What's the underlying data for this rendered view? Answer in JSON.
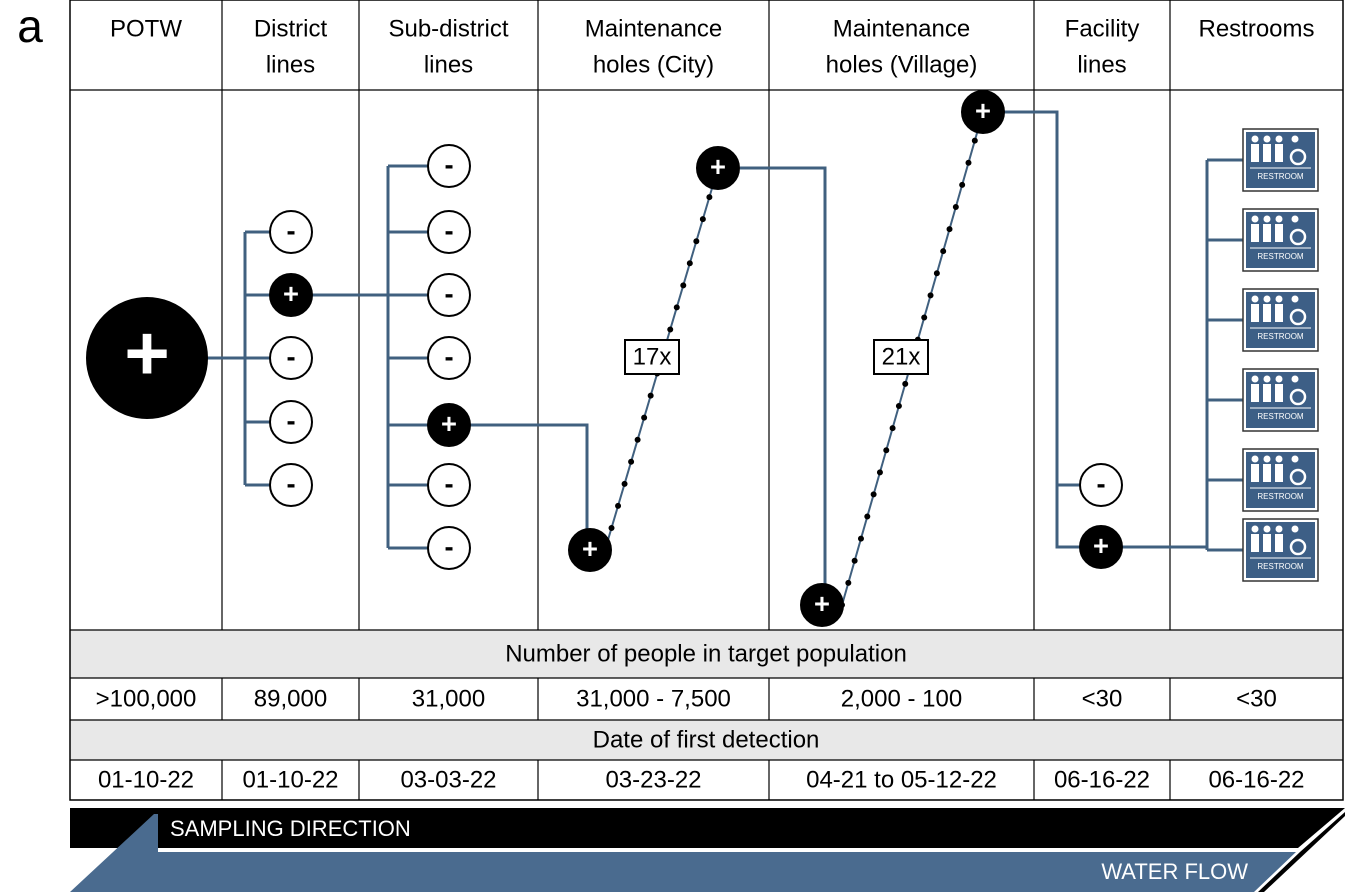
{
  "panel_label": "a",
  "columns": [
    {
      "header": [
        "POTW"
      ]
    },
    {
      "header": [
        "District",
        "lines"
      ]
    },
    {
      "header": [
        "Sub-district",
        "lines"
      ]
    },
    {
      "header": [
        "Maintenance",
        "holes (City)"
      ]
    },
    {
      "header": [
        "Maintenance",
        "holes (Village)"
      ]
    },
    {
      "header": [
        "Facility",
        "lines"
      ]
    },
    {
      "header": [
        "Restrooms"
      ]
    }
  ],
  "potw_node": "+",
  "district_nodes": [
    "-",
    "+",
    "-",
    "-",
    "-"
  ],
  "subdistrict_nodes": [
    "-",
    "-",
    "-",
    "-",
    "+",
    "-",
    "-"
  ],
  "city_nodes": [
    "+",
    "+"
  ],
  "village_nodes": [
    "+",
    "+"
  ],
  "facility_nodes": [
    "-",
    "+"
  ],
  "fold_labels": [
    "17x",
    "21x"
  ],
  "restroom_labels": [
    "RESTROOM",
    "RESTROOM",
    "RESTROOM",
    "RESTROOM",
    "RESTROOM",
    "RESTROOM"
  ],
  "population_heading": "Number of people in target population",
  "populations": [
    ">100,000",
    "89,000",
    "31,000",
    "31,000 - 7,500",
    "2,000 - 100",
    "<30",
    "<30"
  ],
  "date_heading": "Date of first detection",
  "dates": [
    "01-10-22",
    "01-10-22",
    "03-03-22",
    "03-23-22",
    "04-21 to 05-12-22",
    "06-16-22",
    "06-16-22"
  ],
  "sampling_direction": "SAMPLING DIRECTION",
  "water_flow": "WATER FLOW"
}
